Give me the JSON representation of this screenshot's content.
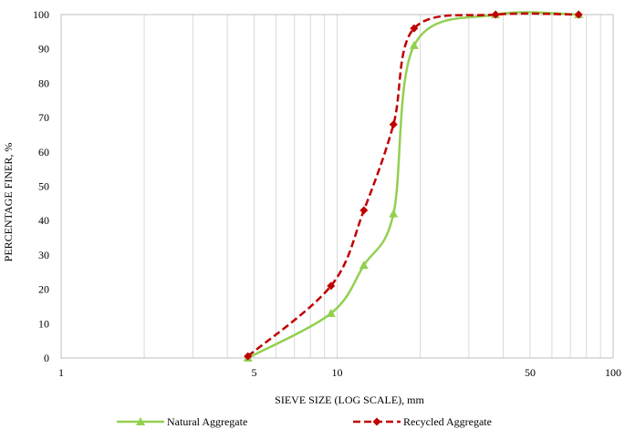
{
  "chart_data": {
    "type": "line",
    "title": "",
    "xlabel": "SIEVE SIZE (LOG SCALE),  mm",
    "ylabel": "PERCENTAGE FINER, %",
    "x_scale": "log",
    "xlim": [
      1,
      100
    ],
    "ylim": [
      0,
      100
    ],
    "x_ticks": [
      {
        "value": 1,
        "label": "1"
      },
      {
        "value": 5,
        "label": "5"
      },
      {
        "value": 10,
        "label": "10"
      },
      {
        "value": 50,
        "label": "50"
      },
      {
        "value": 100,
        "label": "100"
      }
    ],
    "y_ticks": [
      0,
      10,
      20,
      30,
      40,
      50,
      60,
      70,
      80,
      90,
      100
    ],
    "grid": "vertical",
    "legend_position": "bottom",
    "series": [
      {
        "name": "Natural Aggregate",
        "color": "#92D050",
        "line_style": "solid",
        "marker": "triangle",
        "points": [
          {
            "x": 4.75,
            "y": 0
          },
          {
            "x": 9.5,
            "y": 13
          },
          {
            "x": 12.5,
            "y": 27
          },
          {
            "x": 16.0,
            "y": 42
          },
          {
            "x": 19.0,
            "y": 91
          },
          {
            "x": 37.5,
            "y": 100
          },
          {
            "x": 75.0,
            "y": 100
          }
        ]
      },
      {
        "name": "Recycled Aggregate",
        "color": "#C00000",
        "line_style": "dashed",
        "marker": "diamond",
        "points": [
          {
            "x": 4.75,
            "y": 0.5
          },
          {
            "x": 9.5,
            "y": 21
          },
          {
            "x": 12.5,
            "y": 43
          },
          {
            "x": 16.0,
            "y": 68
          },
          {
            "x": 19.0,
            "y": 96
          },
          {
            "x": 37.5,
            "y": 100
          },
          {
            "x": 75.0,
            "y": 100
          }
        ]
      }
    ]
  }
}
